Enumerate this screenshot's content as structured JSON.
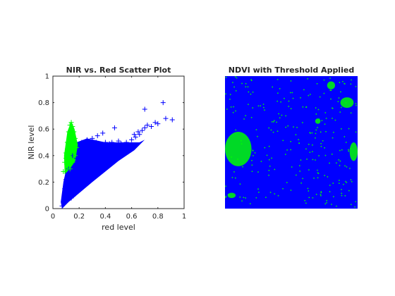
{
  "chart_data": [
    {
      "type": "scatter",
      "title": "NIR vs. Red Scatter Plot",
      "xlabel": "red level",
      "ylabel": "NIR level",
      "xlim": [
        0,
        1
      ],
      "ylim": [
        0,
        1
      ],
      "xticks": [
        "0",
        "0.2",
        "0.4",
        "0.6",
        "0.8",
        "1"
      ],
      "xtick_values": [
        0,
        0.2,
        0.4,
        0.6,
        0.8,
        1
      ],
      "yticks": [
        "0",
        "0.2",
        "0.4",
        "0.6",
        "0.8",
        "1"
      ],
      "ytick_values": [
        0,
        0.2,
        0.4,
        0.6,
        0.8,
        1
      ],
      "marker": "plus",
      "grid": false,
      "series": [
        {
          "color": "#0000ff",
          "points": [
            [
              0.07,
              0.02
            ],
            [
              0.09,
              0.05
            ],
            [
              0.1,
              0.1
            ],
            [
              0.12,
              0.12
            ],
            [
              0.15,
              0.14
            ],
            [
              0.18,
              0.18
            ],
            [
              0.2,
              0.2
            ],
            [
              0.22,
              0.25
            ],
            [
              0.25,
              0.28
            ],
            [
              0.28,
              0.3
            ],
            [
              0.3,
              0.33
            ],
            [
              0.33,
              0.36
            ],
            [
              0.36,
              0.39
            ],
            [
              0.4,
              0.42
            ],
            [
              0.44,
              0.45
            ],
            [
              0.48,
              0.47
            ],
            [
              0.52,
              0.49
            ],
            [
              0.56,
              0.5
            ],
            [
              0.6,
              0.52
            ],
            [
              0.63,
              0.54
            ],
            [
              0.66,
              0.56
            ],
            [
              0.68,
              0.59
            ],
            [
              0.7,
              0.61
            ],
            [
              0.72,
              0.63
            ],
            [
              0.75,
              0.62
            ],
            [
              0.78,
              0.65
            ],
            [
              0.8,
              0.64
            ],
            [
              0.84,
              0.8
            ],
            [
              0.86,
              0.68
            ],
            [
              0.91,
              0.67
            ],
            [
              0.7,
              0.75
            ],
            [
              0.65,
              0.58
            ],
            [
              0.62,
              0.56
            ],
            [
              0.47,
              0.61
            ],
            [
              0.38,
              0.57
            ],
            [
              0.34,
              0.55
            ],
            [
              0.3,
              0.53
            ],
            [
              0.26,
              0.52
            ],
            [
              0.22,
              0.5
            ],
            [
              0.18,
              0.46
            ],
            [
              0.15,
              0.4
            ],
            [
              0.12,
              0.3
            ],
            [
              0.1,
              0.22
            ],
            [
              0.09,
              0.15
            ],
            [
              0.11,
              0.07
            ],
            [
              0.14,
              0.08
            ],
            [
              0.17,
              0.11
            ],
            [
              0.2,
              0.15
            ],
            [
              0.24,
              0.2
            ],
            [
              0.27,
              0.24
            ],
            [
              0.31,
              0.28
            ],
            [
              0.35,
              0.32
            ],
            [
              0.4,
              0.37
            ],
            [
              0.45,
              0.4
            ],
            [
              0.5,
              0.44
            ],
            [
              0.55,
              0.47
            ],
            [
              0.58,
              0.48
            ],
            [
              0.2,
              0.35
            ],
            [
              0.25,
              0.42
            ],
            [
              0.3,
              0.45
            ],
            [
              0.35,
              0.48
            ],
            [
              0.4,
              0.5
            ],
            [
              0.45,
              0.5
            ],
            [
              0.5,
              0.51
            ],
            [
              0.15,
              0.28
            ],
            [
              0.18,
              0.38
            ],
            [
              0.22,
              0.44
            ],
            [
              0.28,
              0.48
            ],
            [
              0.33,
              0.5
            ],
            [
              0.43,
              0.49
            ]
          ]
        },
        {
          "color": "#00ff00",
          "points": [
            [
              0.08,
              0.28
            ],
            [
              0.09,
              0.35
            ],
            [
              0.1,
              0.42
            ],
            [
              0.11,
              0.5
            ],
            [
              0.12,
              0.58
            ],
            [
              0.13,
              0.63
            ],
            [
              0.14,
              0.65
            ],
            [
              0.15,
              0.62
            ],
            [
              0.16,
              0.58
            ],
            [
              0.17,
              0.53
            ],
            [
              0.18,
              0.46
            ],
            [
              0.17,
              0.4
            ],
            [
              0.15,
              0.35
            ],
            [
              0.13,
              0.3
            ],
            [
              0.11,
              0.32
            ],
            [
              0.1,
              0.38
            ],
            [
              0.12,
              0.45
            ],
            [
              0.14,
              0.5
            ],
            [
              0.16,
              0.44
            ],
            [
              0.13,
              0.55
            ],
            [
              0.15,
              0.57
            ],
            [
              0.12,
              0.4
            ],
            [
              0.14,
              0.42
            ],
            [
              0.11,
              0.45
            ],
            [
              0.16,
              0.5
            ]
          ]
        }
      ]
    },
    {
      "type": "heatmap",
      "title": "NDVI with Threshold Applied",
      "colors": {
        "below_threshold": "#0000ff",
        "above_threshold": "#00ff00"
      },
      "above_threshold_regions": [
        {
          "cx": 0.1,
          "cy": 0.55,
          "rx": 0.1,
          "ry": 0.13
        },
        {
          "cx": 0.97,
          "cy": 0.57,
          "rx": 0.03,
          "ry": 0.07
        },
        {
          "cx": 0.92,
          "cy": 0.2,
          "rx": 0.05,
          "ry": 0.04
        },
        {
          "cx": 0.8,
          "cy": 0.07,
          "rx": 0.03,
          "ry": 0.03
        },
        {
          "cx": 0.7,
          "cy": 0.34,
          "rx": 0.02,
          "ry": 0.02
        },
        {
          "cx": 0.05,
          "cy": 0.9,
          "rx": 0.03,
          "ry": 0.02
        }
      ]
    }
  ]
}
